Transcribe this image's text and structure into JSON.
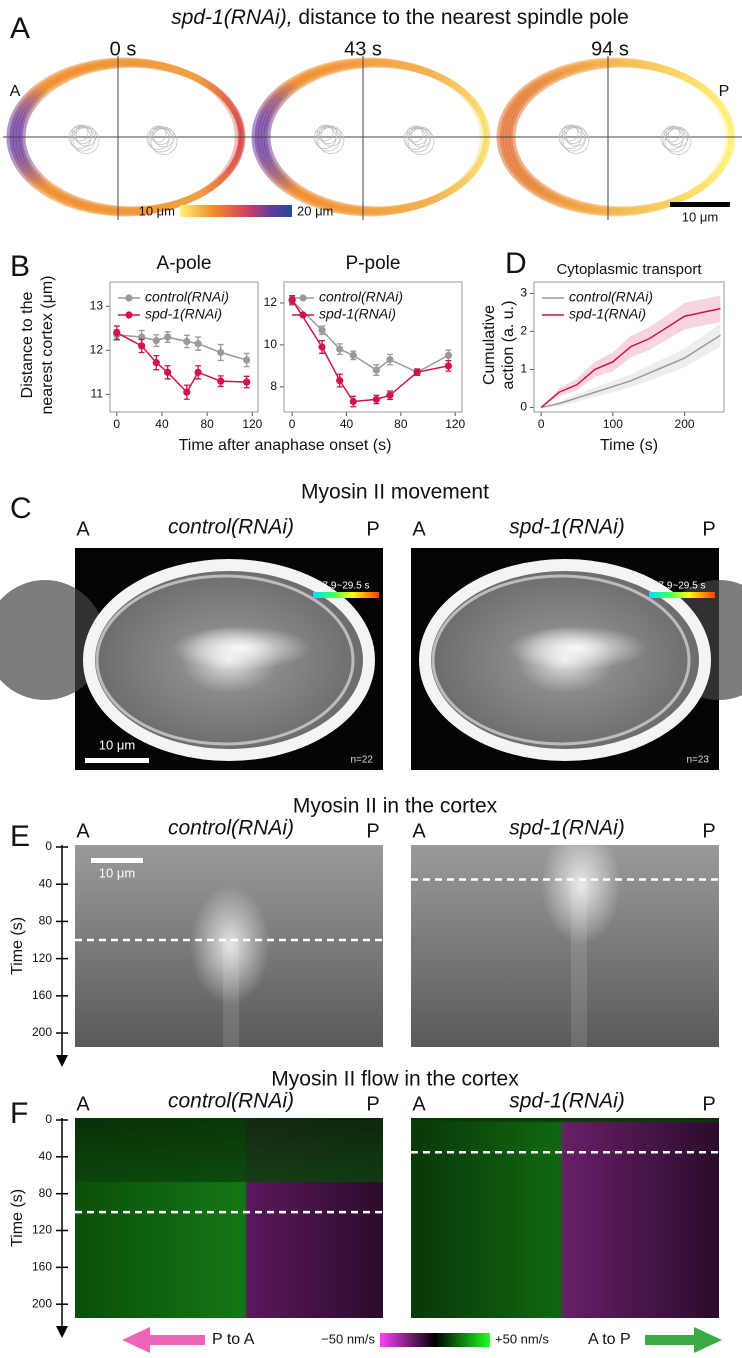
{
  "panel_a": {
    "letter": "A",
    "title_italic": "spd-1(RNAi),",
    "title": "distance to the nearest spindle pole",
    "times": [
      "0 s",
      "43 s",
      "94 s"
    ],
    "anterior": "A",
    "posterior": "P",
    "colorbar_min": "10 μm",
    "colorbar_max": "20 μm",
    "scale_bar": "10 μm"
  },
  "panel_b": {
    "letter": "B",
    "x_label": "Time after anaphase onset (s)",
    "y_label": [
      "Distance to the",
      "nearest cortex (μm)"
    ]
  },
  "panel_d": {
    "letter": "D"
  },
  "chart_data": [
    {
      "type": "line",
      "title": "A-pole",
      "x": [
        0,
        22,
        35,
        45,
        62,
        72,
        92,
        115
      ],
      "series": [
        {
          "name": "control(RNAi)",
          "color": "#9a9a9a",
          "values": [
            12.35,
            12.3,
            12.22,
            12.3,
            12.2,
            12.15,
            11.95,
            11.78
          ],
          "errors": [
            0.12,
            0.15,
            0.13,
            0.12,
            0.14,
            0.15,
            0.18,
            0.15
          ]
        },
        {
          "name": "spd-1(RNAi)",
          "color": "#d0144a",
          "values": [
            12.4,
            12.1,
            11.72,
            11.5,
            11.05,
            11.5,
            11.3,
            11.28
          ],
          "errors": [
            0.15,
            0.15,
            0.16,
            0.15,
            0.16,
            0.15,
            0.12,
            0.13
          ]
        }
      ],
      "xlim": [
        -6,
        125
      ],
      "xticks": [
        0,
        40,
        80,
        120
      ],
      "ylim": [
        10.6,
        13.55
      ],
      "yticks": [
        11,
        12,
        13
      ]
    },
    {
      "type": "line",
      "title": "P-pole",
      "x": [
        0,
        22,
        35,
        45,
        62,
        72,
        92,
        115
      ],
      "series": [
        {
          "name": "control(RNAi)",
          "color": "#9a9a9a",
          "values": [
            12.1,
            10.7,
            9.8,
            9.5,
            8.8,
            9.3,
            8.7,
            9.5
          ],
          "errors": [
            0.2,
            0.2,
            0.25,
            0.2,
            0.25,
            0.25,
            0.15,
            0.25
          ]
        },
        {
          "name": "spd-1(RNAi)",
          "color": "#d0144a",
          "values": [
            12.15,
            9.9,
            8.3,
            7.3,
            7.4,
            7.6,
            8.7,
            9.0
          ],
          "errors": [
            0.2,
            0.3,
            0.3,
            0.25,
            0.2,
            0.2,
            0.15,
            0.25
          ]
        }
      ],
      "xlim": [
        -6,
        125
      ],
      "xticks": [
        0,
        40,
        80,
        120
      ],
      "ylim": [
        6.8,
        13.0
      ],
      "yticks": [
        8,
        10,
        12
      ]
    },
    {
      "type": "band",
      "title": "Cytoplasmic transport",
      "x_label": "Time (s)",
      "y_label": [
        "Cumulative",
        "action (a. u.)"
      ],
      "x": [
        0,
        25,
        50,
        75,
        100,
        125,
        150,
        175,
        200,
        225,
        250
      ],
      "series": [
        {
          "name": "control(RNAi)",
          "color": "#9a9a9a",
          "values": [
            0,
            0.1,
            0.25,
            0.4,
            0.55,
            0.7,
            0.9,
            1.1,
            1.3,
            1.6,
            1.9
          ],
          "errors": [
            0,
            0.05,
            0.1,
            0.12,
            0.15,
            0.17,
            0.2,
            0.22,
            0.25,
            0.27,
            0.3
          ]
        },
        {
          "name": "spd-1(RNAi)",
          "color": "#d0144a",
          "values": [
            0,
            0.4,
            0.6,
            1.0,
            1.2,
            1.6,
            1.8,
            2.1,
            2.4,
            2.5,
            2.6
          ],
          "errors": [
            0,
            0.1,
            0.15,
            0.2,
            0.25,
            0.28,
            0.3,
            0.32,
            0.35,
            0.35,
            0.35
          ]
        }
      ],
      "xlim": [
        -10,
        255
      ],
      "xticks": [
        0,
        100,
        200
      ],
      "ylim": [
        -0.12,
        3.3
      ],
      "yticks": [
        0,
        1,
        2,
        3
      ]
    }
  ],
  "panel_c": {
    "letter": "C",
    "title": "Myosin II movement",
    "labels": [
      "control(RNAi)",
      "spd-1(RNAi)"
    ],
    "anterior": "A",
    "posterior": "P",
    "colorbar": "7.9~29.5 s",
    "scale_bar": "10 μm",
    "counts": [
      "n=22",
      "n=23"
    ]
  },
  "panel_e": {
    "letter": "E",
    "title": "Myosin II in the cortex",
    "labels": [
      "control(RNAi)",
      "spd-1(RNAi)"
    ],
    "anterior": "A",
    "posterior": "P",
    "axis_label": "Time (s)",
    "ylim": [
      0,
      215
    ],
    "yticks": [
      0,
      40,
      80,
      120,
      160,
      200
    ],
    "scale_bar": "10 μm",
    "onset": [
      100,
      35
    ]
  },
  "panel_f": {
    "letter": "F",
    "title": "Myosin II flow in the cortex",
    "labels": [
      "control(RNAi)",
      "spd-1(RNAi)"
    ],
    "anterior": "A",
    "posterior": "P",
    "axis_label": "Time (s)",
    "ylim": [
      0,
      215
    ],
    "yticks": [
      0,
      40,
      80,
      120,
      160,
      200
    ],
    "onset": [
      100,
      35
    ],
    "legend_left": "P to A",
    "legend_min": "−50 nm/s",
    "legend_max": "+50 nm/s",
    "legend_right": "A to P"
  }
}
